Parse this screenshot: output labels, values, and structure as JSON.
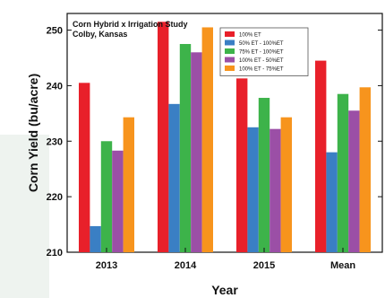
{
  "chart_data": {
    "type": "bar",
    "annotations": [
      "Corn Hybrid x Irrigation Study",
      "Colby, Kansas"
    ],
    "xlabel": "Year",
    "ylabel": "Corn Yield (bu/acre)",
    "categories": [
      "2013",
      "2014",
      "2015",
      "Mean"
    ],
    "ylim": [
      210,
      253
    ],
    "yticks": [
      210,
      220,
      230,
      240,
      250
    ],
    "grid": false,
    "legend_position": "top-right",
    "series": [
      {
        "name": "100% ET",
        "color": "#e8202a",
        "values": [
          240.5,
          251.5,
          241.3,
          244.5
        ]
      },
      {
        "name": "50% ET - 100%ET",
        "color": "#3a7fc4",
        "values": [
          214.7,
          236.7,
          232.5,
          228.0
        ]
      },
      {
        "name": "75% ET - 100%ET",
        "color": "#3db34a",
        "values": [
          230.0,
          247.5,
          237.8,
          238.5
        ]
      },
      {
        "name": "100% ET - 50%ET",
        "color": "#9b4fa6",
        "values": [
          228.3,
          246.0,
          232.2,
          235.5
        ]
      },
      {
        "name": "100% ET - 75%ET",
        "color": "#f7941d",
        "values": [
          234.3,
          250.5,
          234.3,
          239.7
        ]
      }
    ]
  }
}
